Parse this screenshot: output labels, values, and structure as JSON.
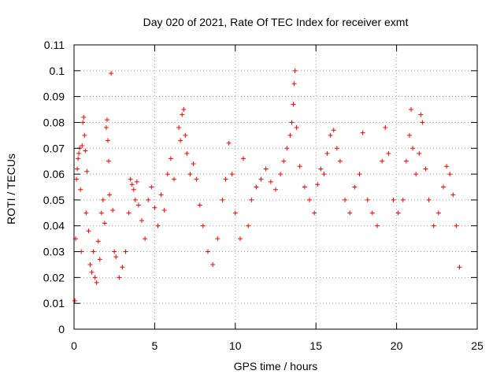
{
  "chart_data": {
    "type": "scatter",
    "title": "Day 020 of 2021, Rate Of TEC Index for receiver exmt",
    "xlabel": "GPS time / hours",
    "ylabel": "ROTI / TECUs",
    "xlim": [
      0,
      25
    ],
    "ylim": [
      0,
      0.11
    ],
    "x_ticks": [
      "0",
      "5",
      "10",
      "15",
      "20",
      "25"
    ],
    "y_ticks": [
      "0",
      "0.01",
      "0.02",
      "0.03",
      "0.04",
      "0.05",
      "0.06",
      "0.07",
      "0.08",
      "0.09",
      "0.1",
      "0.11"
    ],
    "grid": true,
    "legend": "none",
    "marker": "+",
    "color": "#ff0000",
    "points": [
      [
        0.05,
        0.011
      ],
      [
        0.1,
        0.035
      ],
      [
        0.15,
        0.058
      ],
      [
        0.2,
        0.062
      ],
      [
        0.25,
        0.066
      ],
      [
        0.3,
        0.068
      ],
      [
        0.35,
        0.07
      ],
      [
        0.4,
        0.054
      ],
      [
        0.45,
        0.03
      ],
      [
        0.5,
        0.071
      ],
      [
        0.55,
        0.08
      ],
      [
        0.6,
        0.082
      ],
      [
        0.65,
        0.075
      ],
      [
        0.7,
        0.069
      ],
      [
        0.75,
        0.045
      ],
      [
        0.8,
        0.061
      ],
      [
        0.9,
        0.038
      ],
      [
        1.0,
        0.025
      ],
      [
        1.1,
        0.022
      ],
      [
        1.2,
        0.03
      ],
      [
        1.3,
        0.02
      ],
      [
        1.4,
        0.018
      ],
      [
        1.5,
        0.034
      ],
      [
        1.6,
        0.027
      ],
      [
        1.7,
        0.045
      ],
      [
        1.8,
        0.05
      ],
      [
        1.9,
        0.041
      ],
      [
        2.0,
        0.078
      ],
      [
        2.05,
        0.081
      ],
      [
        2.1,
        0.073
      ],
      [
        2.15,
        0.065
      ],
      [
        2.2,
        0.052
      ],
      [
        2.3,
        0.099
      ],
      [
        2.4,
        0.046
      ],
      [
        2.5,
        0.03
      ],
      [
        2.6,
        0.028
      ],
      [
        2.8,
        0.02
      ],
      [
        3.0,
        0.024
      ],
      [
        3.2,
        0.03
      ],
      [
        3.4,
        0.045
      ],
      [
        3.5,
        0.058
      ],
      [
        3.6,
        0.056
      ],
      [
        3.7,
        0.054
      ],
      [
        3.8,
        0.05
      ],
      [
        3.9,
        0.057
      ],
      [
        4.0,
        0.048
      ],
      [
        4.2,
        0.042
      ],
      [
        4.4,
        0.035
      ],
      [
        4.6,
        0.05
      ],
      [
        4.8,
        0.055
      ],
      [
        5.0,
        0.047
      ],
      [
        5.2,
        0.04
      ],
      [
        5.4,
        0.052
      ],
      [
        5.6,
        0.046
      ],
      [
        5.8,
        0.06
      ],
      [
        6.0,
        0.066
      ],
      [
        6.2,
        0.058
      ],
      [
        6.5,
        0.078
      ],
      [
        6.6,
        0.073
      ],
      [
        6.7,
        0.083
      ],
      [
        6.8,
        0.085
      ],
      [
        6.9,
        0.075
      ],
      [
        7.0,
        0.068
      ],
      [
        7.2,
        0.06
      ],
      [
        7.4,
        0.064
      ],
      [
        7.6,
        0.058
      ],
      [
        7.8,
        0.048
      ],
      [
        8.0,
        0.04
      ],
      [
        8.3,
        0.03
      ],
      [
        8.6,
        0.025
      ],
      [
        8.9,
        0.035
      ],
      [
        9.2,
        0.05
      ],
      [
        9.4,
        0.058
      ],
      [
        9.6,
        0.072
      ],
      [
        9.8,
        0.06
      ],
      [
        10.0,
        0.045
      ],
      [
        10.3,
        0.035
      ],
      [
        10.5,
        0.066
      ],
      [
        10.8,
        0.04
      ],
      [
        11.0,
        0.05
      ],
      [
        11.3,
        0.055
      ],
      [
        11.6,
        0.058
      ],
      [
        11.9,
        0.062
      ],
      [
        12.2,
        0.057
      ],
      [
        12.5,
        0.054
      ],
      [
        12.8,
        0.06
      ],
      [
        13.0,
        0.065
      ],
      [
        13.2,
        0.07
      ],
      [
        13.4,
        0.075
      ],
      [
        13.5,
        0.08
      ],
      [
        13.6,
        0.087
      ],
      [
        13.65,
        0.095
      ],
      [
        13.7,
        0.1
      ],
      [
        13.8,
        0.078
      ],
      [
        14.0,
        0.063
      ],
      [
        14.3,
        0.055
      ],
      [
        14.6,
        0.05
      ],
      [
        14.9,
        0.045
      ],
      [
        15.1,
        0.056
      ],
      [
        15.3,
        0.062
      ],
      [
        15.5,
        0.06
      ],
      [
        15.7,
        0.068
      ],
      [
        15.9,
        0.075
      ],
      [
        16.1,
        0.077
      ],
      [
        16.3,
        0.07
      ],
      [
        16.5,
        0.065
      ],
      [
        16.8,
        0.05
      ],
      [
        17.1,
        0.045
      ],
      [
        17.4,
        0.055
      ],
      [
        17.7,
        0.06
      ],
      [
        17.9,
        0.076
      ],
      [
        18.2,
        0.05
      ],
      [
        18.5,
        0.045
      ],
      [
        18.8,
        0.04
      ],
      [
        19.1,
        0.065
      ],
      [
        19.3,
        0.078
      ],
      [
        19.5,
        0.068
      ],
      [
        19.8,
        0.05
      ],
      [
        20.1,
        0.045
      ],
      [
        20.4,
        0.05
      ],
      [
        20.6,
        0.065
      ],
      [
        20.8,
        0.075
      ],
      [
        20.9,
        0.085
      ],
      [
        21.0,
        0.07
      ],
      [
        21.2,
        0.06
      ],
      [
        21.4,
        0.068
      ],
      [
        21.5,
        0.083
      ],
      [
        21.6,
        0.08
      ],
      [
        21.8,
        0.062
      ],
      [
        22.0,
        0.05
      ],
      [
        22.3,
        0.04
      ],
      [
        22.6,
        0.045
      ],
      [
        22.9,
        0.055
      ],
      [
        23.1,
        0.063
      ],
      [
        23.3,
        0.06
      ],
      [
        23.5,
        0.052
      ],
      [
        23.7,
        0.04
      ],
      [
        23.9,
        0.024
      ]
    ]
  }
}
